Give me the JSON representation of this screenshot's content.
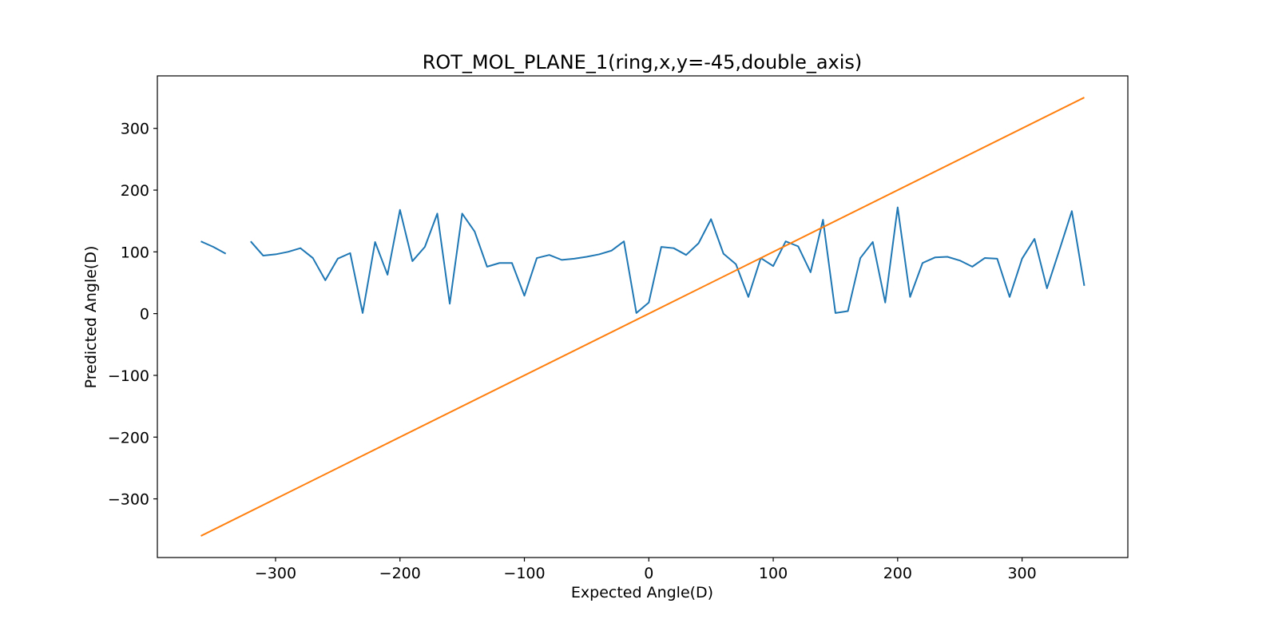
{
  "chart_data": {
    "type": "line",
    "title": "ROT_MOL_PLANE_1(ring,x,y=-45,double_axis)",
    "xlabel": "Expected Angle(D)",
    "ylabel": "Predicted Angle(D)",
    "xlim": [
      -395,
      385
    ],
    "ylim": [
      -395,
      385
    ],
    "xticks": [
      -300,
      -200,
      -100,
      0,
      100,
      200,
      300
    ],
    "xtick_labels": [
      "−300",
      "−200",
      "−100",
      "0",
      "100",
      "200",
      "300"
    ],
    "yticks": [
      -300,
      -200,
      -100,
      0,
      100,
      200,
      300
    ],
    "ytick_labels": [
      "−300",
      "−200",
      "−100",
      "0",
      "100",
      "200",
      "300"
    ],
    "grid": false,
    "legend": "none",
    "series": [
      {
        "color": "#1f77b4",
        "x": [
          -360,
          -350,
          -340,
          -330,
          -320,
          -310,
          -300,
          -290,
          -280,
          -270,
          -260,
          -250,
          -240,
          -230,
          -220,
          -210,
          -200,
          -190,
          -180,
          -170,
          -160,
          -150,
          -140,
          -130,
          -120,
          -110,
          -100,
          -90,
          -80,
          -70,
          -60,
          -50,
          -40,
          -30,
          -20,
          -10,
          0,
          10,
          20,
          30,
          40,
          50,
          60,
          70,
          80,
          90,
          100,
          110,
          120,
          130,
          140,
          150,
          160,
          170,
          180,
          190,
          200,
          210,
          220,
          230,
          240,
          250,
          260,
          270,
          280,
          290,
          300,
          310,
          320,
          330,
          340,
          350
        ],
        "y": [
          117,
          108,
          97,
          null,
          117,
          94,
          96,
          100,
          106,
          90,
          54,
          89,
          98,
          1,
          116,
          63,
          168,
          85,
          108,
          162,
          16,
          162,
          133,
          76,
          82,
          82,
          29,
          90,
          95,
          87,
          89,
          92,
          96,
          102,
          117,
          1,
          18,
          108,
          106,
          95,
          114,
          153,
          97,
          80,
          27,
          90,
          77,
          117,
          109,
          67,
          152,
          1,
          4,
          90,
          116,
          18,
          172,
          27,
          82,
          91,
          92,
          86,
          76,
          90,
          89,
          27,
          89,
          121,
          41,
          103,
          166,
          45
        ]
      },
      {
        "color": "#ff7f0e",
        "x": [
          -360,
          350
        ],
        "y": [
          -360,
          350
        ]
      }
    ]
  }
}
